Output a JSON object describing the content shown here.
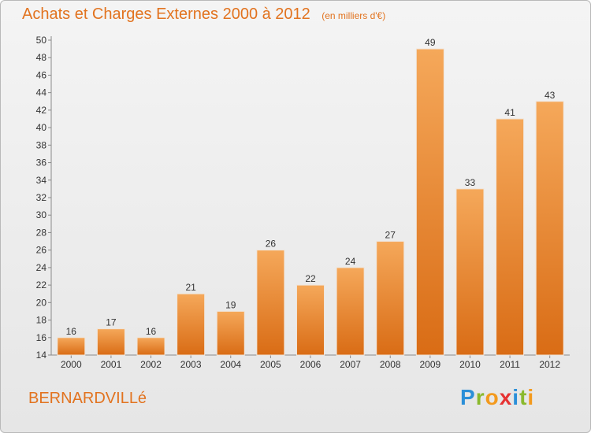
{
  "header": {
    "title": "Achats et Charges Externes 2000 à 2012",
    "unit": "(en milliers d'€)"
  },
  "footer": {
    "commune": "BERNARDVILLé",
    "logo_letters": [
      "P",
      "r",
      "o",
      "x",
      "i",
      "t",
      "i"
    ],
    "logo_colors": [
      "#2b8fd8",
      "#8ab92d",
      "#f39a1e",
      "#e63232",
      "#2b8fd8",
      "#8ab92d",
      "#f39a1e"
    ]
  },
  "colors": {
    "bar_light": "#f5a85a",
    "bar_dark": "#d96c15",
    "text": "#e2731f"
  },
  "chart_data": {
    "type": "bar",
    "categories": [
      "2000",
      "2001",
      "2002",
      "2003",
      "2004",
      "2005",
      "2006",
      "2007",
      "2008",
      "2009",
      "2010",
      "2011",
      "2012"
    ],
    "values": [
      16,
      17,
      16,
      21,
      19,
      26,
      22,
      24,
      27,
      49,
      33,
      41,
      43
    ],
    "ylim": [
      14,
      50
    ],
    "yticks": [
      14,
      16,
      18,
      20,
      22,
      24,
      26,
      28,
      30,
      32,
      34,
      36,
      38,
      40,
      42,
      44,
      46,
      48,
      50
    ],
    "grid": false
  }
}
